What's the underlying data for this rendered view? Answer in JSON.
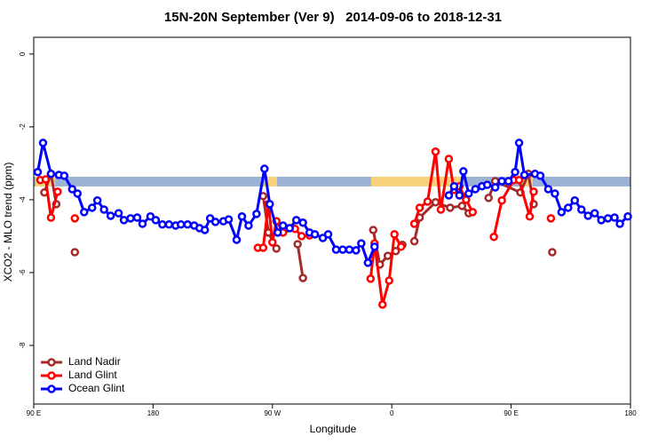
{
  "chart_data": {
    "type": "line",
    "title": "15N-20N September (Ver 9)   2014-09-06 to 2018-12-31",
    "xlabel": "Longitude",
    "ylabel": "XCO2 - MLO trend (ppm)",
    "xlim": [
      90,
      540
    ],
    "ylim": [
      -9.61,
      0.46
    ],
    "xticks": [
      {
        "value": 90,
        "label": "90 E"
      },
      180,
      {
        "value": 270,
        "label": "90 W"
      },
      {
        "value": 360,
        "label": "0"
      },
      {
        "value": 450,
        "label": "90 E"
      },
      {
        "value": 540,
        "label": "180"
      }
    ],
    "yticks": [
      0,
      -2,
      -4,
      -6,
      -8
    ],
    "legend": "bottom-left",
    "series": [
      {
        "name": "Land Nadir",
        "color": "#a52a2a",
        "x": [
          98,
          103,
          107,
          114,
          121,
          190,
          263,
          267,
          273,
          280,
          289,
          293,
          320,
          346,
          351,
          357,
          363,
          368,
          372,
          377,
          381,
          393,
          404,
          413,
          418,
          425,
          433,
          438,
          457,
          463,
          467,
          475,
          481
        ],
        "values": [
          -3.8,
          -3.29,
          -4.12,
          null,
          -5.44,
          null,
          -3.9,
          -4.9,
          -5.34,
          null,
          -5.22,
          -6.15,
          null,
          -4.83,
          -5.78,
          -5.54,
          -5.41,
          -5.24,
          null,
          -5.14,
          -4.49,
          -4.07,
          -4.22,
          -4.17,
          -4.37,
          null,
          -3.95,
          -3.49,
          -3.8,
          -3.29,
          -4.12,
          null,
          -5.44
        ]
      },
      {
        "name": "Land Glint",
        "color": "#ff0000",
        "x": [
          95,
          99,
          103,
          108,
          114,
          121,
          190,
          259,
          263,
          267,
          270,
          273,
          278,
          287,
          292,
          298,
          320,
          344,
          347,
          353,
          358,
          362,
          367,
          372,
          377,
          381,
          387,
          393,
          397,
          403,
          407,
          411,
          416,
          421,
          430,
          437,
          443,
          452,
          456,
          464,
          467,
          474,
          480
        ],
        "values": [
          -3.46,
          -3.44,
          -4.49,
          -3.78,
          null,
          -4.51,
          null,
          -5.32,
          -5.32,
          -4.12,
          -5.17,
          -4.59,
          -4.9,
          -4.8,
          -5.0,
          -4.98,
          null,
          -6.17,
          -5.2,
          -6.88,
          -6.22,
          -4.95,
          -5.29,
          null,
          -4.66,
          -4.22,
          -4.05,
          -2.68,
          -4.27,
          -2.88,
          -3.73,
          -3.63,
          -4.0,
          -4.34,
          null,
          -5.02,
          -4.02,
          -3.46,
          -3.46,
          -4.46,
          -3.78,
          null,
          -4.51
        ]
      },
      {
        "name": "Ocean Glint",
        "color": "#0000ff",
        "x": [
          93,
          97,
          103,
          109,
          113,
          119,
          123,
          128,
          134,
          138,
          143,
          148,
          154,
          158,
          163,
          168,
          172,
          178,
          182,
          187,
          192,
          197,
          201,
          206,
          211,
          215,
          219,
          223,
          227,
          233,
          237,
          243,
          247,
          252,
          258,
          264,
          268,
          274,
          278,
          283,
          288,
          293,
          298,
          302,
          308,
          312,
          318,
          323,
          328,
          333,
          337,
          342,
          347,
          380,
          403,
          407,
          411,
          414,
          418,
          423,
          428,
          432,
          438,
          443,
          448,
          453,
          456,
          460,
          468,
          472,
          478,
          483,
          488,
          493,
          498,
          503,
          508,
          513,
          518,
          523,
          528,
          532,
          538
        ],
        "values": [
          -3.24,
          -2.44,
          -3.29,
          -3.32,
          -3.34,
          -3.71,
          -3.83,
          -4.34,
          -4.22,
          -4.02,
          -4.27,
          -4.44,
          -4.37,
          -4.56,
          -4.51,
          -4.49,
          -4.66,
          -4.46,
          -4.56,
          -4.68,
          -4.68,
          -4.71,
          -4.68,
          -4.68,
          -4.71,
          -4.78,
          -4.83,
          -4.51,
          -4.61,
          -4.59,
          -4.54,
          -5.1,
          -4.46,
          -4.71,
          -4.39,
          -3.15,
          -4.12,
          -4.9,
          -4.71,
          -4.78,
          -4.56,
          -4.63,
          -4.9,
          -4.95,
          -5.05,
          -4.95,
          -5.37,
          -5.37,
          -5.37,
          -5.39,
          -5.2,
          -5.73,
          -5.29,
          null,
          -3.88,
          -3.63,
          -3.88,
          -3.22,
          -3.83,
          -3.71,
          -3.63,
          -3.59,
          -3.66,
          -3.49,
          -3.49,
          -3.24,
          -2.44,
          -3.32,
          -3.29,
          -3.34,
          -3.71,
          -3.83,
          -4.34,
          -4.22,
          -4.02,
          -4.27,
          -4.44,
          -4.37,
          -4.56,
          -4.51,
          -4.49,
          -4.66,
          -4.46
        ]
      }
    ]
  }
}
